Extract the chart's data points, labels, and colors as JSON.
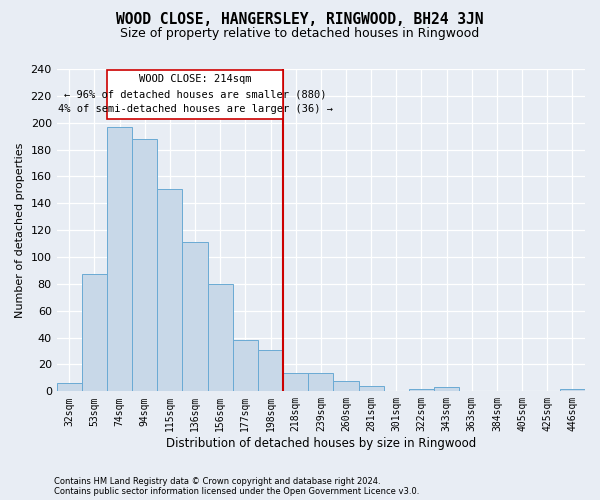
{
  "title": "WOOD CLOSE, HANGERSLEY, RINGWOOD, BH24 3JN",
  "subtitle": "Size of property relative to detached houses in Ringwood",
  "xlabel": "Distribution of detached houses by size in Ringwood",
  "ylabel": "Number of detached properties",
  "footnote1": "Contains HM Land Registry data © Crown copyright and database right 2024.",
  "footnote2": "Contains public sector information licensed under the Open Government Licence v3.0.",
  "annotation_line1": "WOOD CLOSE: 214sqm",
  "annotation_line2": "← 96% of detached houses are smaller (880)",
  "annotation_line3": "4% of semi-detached houses are larger (36) →",
  "bar_color": "#c8d8e8",
  "bar_edge_color": "#6aaad4",
  "vline_color": "#cc0000",
  "categories": [
    "32sqm",
    "53sqm",
    "74sqm",
    "94sqm",
    "115sqm",
    "136sqm",
    "156sqm",
    "177sqm",
    "198sqm",
    "218sqm",
    "239sqm",
    "260sqm",
    "281sqm",
    "301sqm",
    "322sqm",
    "343sqm",
    "363sqm",
    "384sqm",
    "405sqm",
    "425sqm",
    "446sqm"
  ],
  "values": [
    6,
    87,
    197,
    188,
    151,
    111,
    80,
    38,
    31,
    14,
    14,
    8,
    4,
    0,
    2,
    3,
    0,
    0,
    0,
    0,
    2
  ],
  "vline_index": 9,
  "ylim": [
    0,
    240
  ],
  "yticks": [
    0,
    20,
    40,
    60,
    80,
    100,
    120,
    140,
    160,
    180,
    200,
    220,
    240
  ],
  "bg_color": "#e8edf4",
  "grid_color": "#ffffff",
  "title_fontsize": 10.5,
  "subtitle_fontsize": 9,
  "tick_fontsize": 7,
  "ylabel_fontsize": 8,
  "xlabel_fontsize": 8.5,
  "annot_fontsize": 7.5,
  "footnote_fontsize": 6
}
